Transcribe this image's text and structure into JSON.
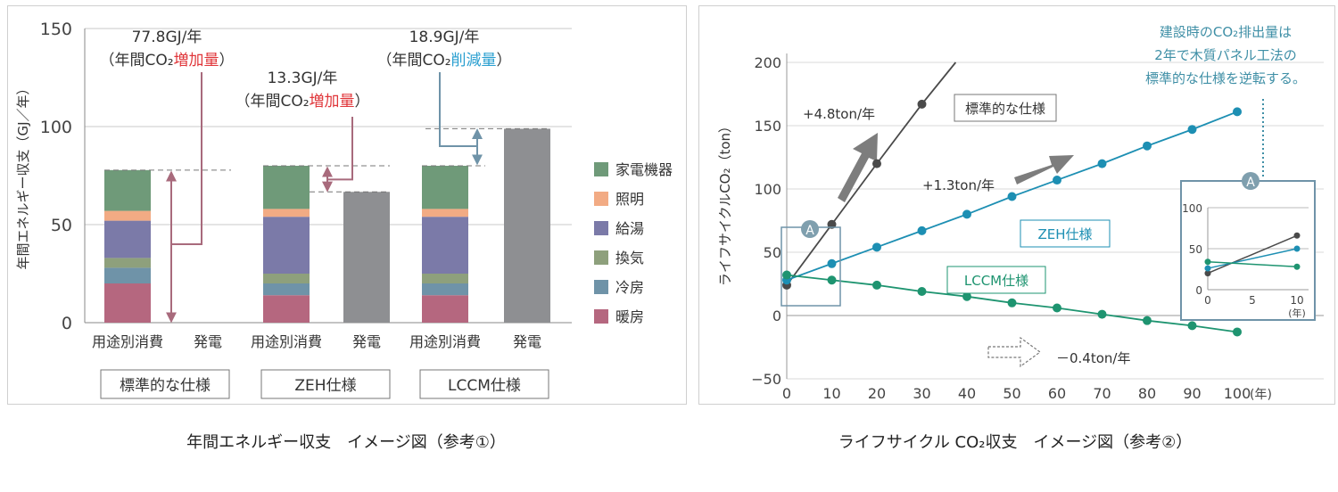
{
  "chart_data": [
    {
      "type": "bar",
      "stacked": true,
      "ylabel": "年間エネルギー収支（GJ／年）",
      "ylim": [
        0,
        150
      ],
      "yticks": [
        0,
        50,
        100,
        150
      ],
      "categories": [
        "用途別消費",
        "発電",
        "用途別消費",
        "発電",
        "用途別消費",
        "発電"
      ],
      "groups": [
        "標準的な仕様",
        "ZEH仕様",
        "LCCM仕様"
      ],
      "series": [
        {
          "name": "暖房",
          "color": "#b5677f",
          "values": [
            20,
            0,
            14,
            0,
            14,
            0
          ]
        },
        {
          "name": "冷房",
          "color": "#6f93a8",
          "values": [
            8,
            0,
            6,
            0,
            6,
            0
          ]
        },
        {
          "name": "換気",
          "color": "#8ea07c",
          "values": [
            5,
            0,
            5,
            0,
            5,
            0
          ]
        },
        {
          "name": "給湯",
          "color": "#7b7aa8",
          "values": [
            19,
            0,
            29,
            0,
            29,
            0
          ]
        },
        {
          "name": "照明",
          "color": "#f2ab84",
          "values": [
            5,
            0,
            4,
            0,
            4,
            0
          ]
        },
        {
          "name": "家電機器",
          "color": "#6f9a79",
          "values": [
            20.8,
            0,
            22,
            0,
            22,
            0
          ]
        },
        {
          "name": "発電",
          "color": "#8e8f92",
          "values": [
            0,
            0,
            0,
            66.7,
            0,
            98.9
          ]
        }
      ],
      "legend": [
        "家電機器",
        "照明",
        "給湯",
        "換気",
        "冷房",
        "暖房"
      ],
      "annotations": [
        {
          "value": "77.8GJ/年",
          "prefix": "（年間CO₂",
          "highlight": "増加量",
          "suffix": "）",
          "highlight_color": "#e0363a"
        },
        {
          "value": "13.3GJ/年",
          "prefix": "（年間CO₂",
          "highlight": "増加量",
          "suffix": "）",
          "highlight_color": "#e0363a"
        },
        {
          "value": "18.9GJ/年",
          "prefix": "（年間CO₂",
          "highlight": "削減量",
          "suffix": "）",
          "highlight_color": "#2a9fd0"
        }
      ],
      "arrow_colors": {
        "increase": "#a86a7c",
        "decrease": "#6f93a8"
      },
      "caption": "年間エネルギー収支　イメージ図（参考①）"
    },
    {
      "type": "line",
      "ylabel": "ライフサイクルCO₂（ton）",
      "xlabel": "(年)",
      "xlim": [
        0,
        100
      ],
      "ylim": [
        -50,
        200
      ],
      "xticks": [
        0,
        10,
        20,
        30,
        40,
        50,
        60,
        70,
        80,
        90,
        100
      ],
      "yticks": [
        -50,
        0,
        50,
        100,
        150,
        200
      ],
      "series": [
        {
          "name": "標準的な仕様",
          "color": "#4a4a4a",
          "x": [
            0,
            10,
            20,
            30
          ],
          "y": [
            24,
            72,
            120,
            167
          ],
          "line_end": [
            37.5,
            200
          ],
          "rate": "+4.8ton/年"
        },
        {
          "name": "ZEH仕様",
          "color": "#1d8fb3",
          "x": [
            0,
            10,
            20,
            30,
            40,
            50,
            60,
            70,
            80,
            90,
            100
          ],
          "y": [
            28,
            41,
            54,
            67,
            80,
            94,
            107,
            120,
            134,
            147,
            161
          ],
          "rate": "+1.3ton/年"
        },
        {
          "name": "LCCM仕様",
          "color": "#1e9470",
          "x": [
            0,
            10,
            20,
            30,
            40,
            50,
            60,
            70,
            80,
            90,
            100
          ],
          "y": [
            32,
            28,
            24,
            19,
            15,
            10,
            6,
            1,
            -4,
            -8,
            -13
          ],
          "rate": "－0.4ton/年"
        }
      ],
      "note": [
        "建設時のCO₂排出量は",
        "2年で木質パネル工法の",
        "標準的な仕様を逆転する。"
      ],
      "note_color": "#3f8fa6",
      "marker": "A",
      "inset": {
        "xticks": [
          0,
          5,
          10
        ],
        "yticks": [
          0,
          50,
          100
        ],
        "xlabel": "(年)",
        "series": [
          {
            "name": "標準的な仕様",
            "x": [
              0,
              10
            ],
            "y": [
              20,
              66
            ]
          },
          {
            "name": "ZEH仕様",
            "x": [
              0,
              10
            ],
            "y": [
              26,
              50
            ]
          },
          {
            "name": "LCCM仕様",
            "x": [
              0,
              10
            ],
            "y": [
              34,
              28
            ]
          }
        ]
      },
      "caption": "ライフサイクル CO₂収支　イメージ図（参考②）"
    }
  ]
}
